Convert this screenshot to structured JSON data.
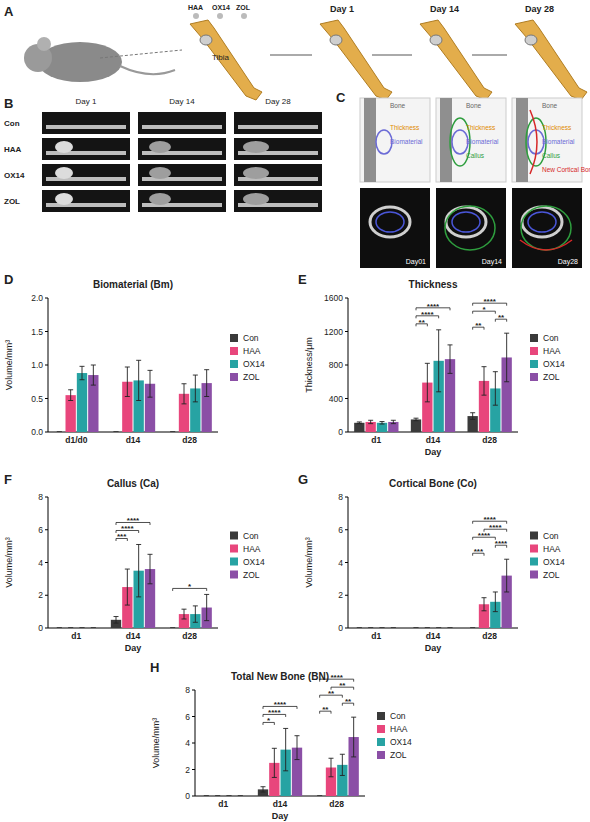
{
  "figure": {
    "panel_labels": [
      "A",
      "B",
      "C"
    ],
    "a": {
      "materials": [
        "HAA",
        "OX14",
        "ZOL"
      ],
      "tibia_label": "Tibia",
      "days": [
        "Day 1",
        "Day 14",
        "Day 28"
      ]
    },
    "b": {
      "days": [
        "Day 1",
        "Day 14",
        "Day 28"
      ],
      "groups": [
        "Con",
        "HAA",
        "OX14",
        "ZOL"
      ]
    },
    "c": {
      "schematic_labels": [
        "Bone",
        "Thickness",
        "Biomaterial",
        "Callus",
        "New Cortical Bone"
      ],
      "days": [
        "Day01",
        "Day14",
        "Day28"
      ]
    }
  },
  "chart_data": [
    {
      "type": "bar",
      "panel_label": "D",
      "title": "Biomaterial (Bm)",
      "ylabel": "Volume/mm³",
      "categories": [
        "d1/d0",
        "d14",
        "d28"
      ],
      "series": [
        {
          "name": "Con",
          "color": "#3a3a3a",
          "values": [
            0,
            0,
            0
          ],
          "errors": [
            0,
            0,
            0
          ]
        },
        {
          "name": "HAA",
          "color": "#e8467c",
          "values": [
            0.55,
            0.75,
            0.57
          ],
          "errors": [
            0.08,
            0.22,
            0.15
          ]
        },
        {
          "name": "OX14",
          "color": "#27a3a3",
          "values": [
            0.88,
            0.77,
            0.65
          ],
          "errors": [
            0.1,
            0.3,
            0.2
          ]
        },
        {
          "name": "ZOL",
          "color": "#8b4fa6",
          "values": [
            0.85,
            0.72,
            0.73
          ],
          "errors": [
            0.15,
            0.2,
            0.2
          ]
        }
      ],
      "ylim": [
        0,
        2
      ],
      "yticks": [
        {
          "value": 0,
          "label": "0.0"
        },
        0.5,
        {
          "value": 1,
          "label": "1.0"
        },
        1.5,
        {
          "value": 2,
          "label": "2.0"
        }
      ],
      "legend": "right"
    },
    {
      "type": "bar",
      "panel_label": "E",
      "title": "Thickness",
      "ylabel": "Thickness/μm",
      "xlabel": "Day",
      "categories": [
        "d1",
        "d14",
        "d28"
      ],
      "series": [
        {
          "name": "Con",
          "color": "#3a3a3a",
          "values": [
            110,
            150,
            190
          ],
          "errors": [
            10,
            15,
            40
          ]
        },
        {
          "name": "HAA",
          "color": "#e8467c",
          "values": [
            120,
            590,
            610
          ],
          "errors": [
            20,
            230,
            170
          ]
        },
        {
          "name": "OX14",
          "color": "#27a3a3",
          "values": [
            110,
            850,
            520
          ],
          "errors": [
            15,
            370,
            200
          ]
        },
        {
          "name": "ZOL",
          "color": "#8b4fa6",
          "values": [
            120,
            870,
            890
          ],
          "errors": [
            20,
            170,
            290
          ]
        }
      ],
      "ylim": [
        0,
        1600
      ],
      "yticks": [
        0,
        400,
        800,
        1200,
        1600
      ],
      "legend": "right",
      "significance": [
        {
          "category": "d14",
          "from": "Con",
          "to": "HAA",
          "label": "**"
        },
        {
          "category": "d14",
          "from": "Con",
          "to": "OX14",
          "label": "****"
        },
        {
          "category": "d14",
          "from": "Con",
          "to": "ZOL",
          "label": "****"
        },
        {
          "category": "d28",
          "from": "Con",
          "to": "HAA",
          "label": "**"
        },
        {
          "category": "d28",
          "from": "OX14",
          "to": "ZOL",
          "label": "**"
        },
        {
          "category": "d28",
          "from": "Con",
          "to": "OX14",
          "label": "*"
        },
        {
          "category": "d28",
          "from": "Con",
          "to": "ZOL",
          "label": "****"
        }
      ]
    },
    {
      "type": "bar",
      "panel_label": "F",
      "title": "Callus (Ca)",
      "ylabel": "Volume/mm³",
      "xlabel": "Day",
      "categories": [
        "d1",
        "d14",
        "d28"
      ],
      "series": [
        {
          "name": "Con",
          "color": "#3a3a3a",
          "values": [
            0,
            0.5,
            0
          ],
          "errors": [
            0,
            0.2,
            0
          ]
        },
        {
          "name": "HAA",
          "color": "#e8467c",
          "values": [
            0,
            2.5,
            0.85
          ],
          "errors": [
            0,
            1.1,
            0.3
          ]
        },
        {
          "name": "OX14",
          "color": "#27a3a3",
          "values": [
            0,
            3.5,
            0.85
          ],
          "errors": [
            0,
            1.6,
            0.5
          ]
        },
        {
          "name": "ZOL",
          "color": "#8b4fa6",
          "values": [
            0,
            3.6,
            1.25
          ],
          "errors": [
            0,
            0.9,
            0.8
          ]
        }
      ],
      "ylim": [
        0,
        8
      ],
      "yticks": [
        0,
        2,
        4,
        6,
        8
      ],
      "legend": "right",
      "significance": [
        {
          "category": "d14",
          "from": "Con",
          "to": "HAA",
          "label": "***"
        },
        {
          "category": "d14",
          "from": "Con",
          "to": "OX14",
          "label": "****"
        },
        {
          "category": "d14",
          "from": "Con",
          "to": "ZOL",
          "label": "****"
        },
        {
          "category": "d28",
          "from": "Con",
          "to": "ZOL",
          "label": "*"
        }
      ]
    },
    {
      "type": "bar",
      "panel_label": "G",
      "title": "Cortical Bone (Co)",
      "ylabel": "Volume/mm³",
      "xlabel": "Day",
      "categories": [
        "d1",
        "d14",
        "d28"
      ],
      "series": [
        {
          "name": "Con",
          "color": "#3a3a3a",
          "values": [
            0,
            0,
            0
          ],
          "errors": [
            0,
            0,
            0
          ]
        },
        {
          "name": "HAA",
          "color": "#e8467c",
          "values": [
            0,
            0,
            1.45
          ],
          "errors": [
            0,
            0,
            0.4
          ]
        },
        {
          "name": "OX14",
          "color": "#27a3a3",
          "values": [
            0,
            0,
            1.6
          ],
          "errors": [
            0,
            0,
            0.6
          ]
        },
        {
          "name": "ZOL",
          "color": "#8b4fa6",
          "values": [
            0,
            0,
            3.2
          ],
          "errors": [
            0,
            0,
            1.0
          ]
        }
      ],
      "ylim": [
        0,
        8
      ],
      "yticks": [
        0,
        2,
        4,
        6,
        8
      ],
      "legend": "right",
      "significance": [
        {
          "category": "d28",
          "from": "Con",
          "to": "HAA",
          "label": "***"
        },
        {
          "category": "d28",
          "from": "OX14",
          "to": "ZOL",
          "label": "****"
        },
        {
          "category": "d28",
          "from": "Con",
          "to": "OX14",
          "label": "****"
        },
        {
          "category": "d28",
          "from": "HAA",
          "to": "ZOL",
          "label": "****"
        },
        {
          "category": "d28",
          "from": "Con",
          "to": "ZOL",
          "label": "****"
        }
      ]
    },
    {
      "type": "bar",
      "panel_label": "H",
      "title": "Total New Bone (BN)",
      "ylabel": "Volume/mm³",
      "xlabel": "Day",
      "categories": [
        "d1",
        "d14",
        "d28"
      ],
      "series": [
        {
          "name": "Con",
          "color": "#3a3a3a",
          "values": [
            0,
            0.5,
            0
          ],
          "errors": [
            0,
            0.2,
            0
          ]
        },
        {
          "name": "HAA",
          "color": "#e8467c",
          "values": [
            0,
            2.5,
            2.15
          ],
          "errors": [
            0,
            1.1,
            0.7
          ]
        },
        {
          "name": "OX14",
          "color": "#27a3a3",
          "values": [
            0,
            3.5,
            2.35
          ],
          "errors": [
            0,
            1.6,
            0.8
          ]
        },
        {
          "name": "ZOL",
          "color": "#8b4fa6",
          "values": [
            0,
            3.65,
            4.45
          ],
          "errors": [
            0,
            0.9,
            1.5
          ]
        }
      ],
      "ylim": [
        0,
        8
      ],
      "yticks": [
        0,
        2,
        4,
        6,
        8
      ],
      "legend": "right",
      "significance": [
        {
          "category": "d14",
          "from": "Con",
          "to": "HAA",
          "label": "*"
        },
        {
          "category": "d14",
          "from": "Con",
          "to": "OX14",
          "label": "****"
        },
        {
          "category": "d14",
          "from": "Con",
          "to": "ZOL",
          "label": "****"
        },
        {
          "category": "d28",
          "from": "Con",
          "to": "HAA",
          "label": "**"
        },
        {
          "category": "d28",
          "from": "OX14",
          "to": "ZOL",
          "label": "**"
        },
        {
          "category": "d28",
          "from": "Con",
          "to": "OX14",
          "label": "**"
        },
        {
          "category": "d28",
          "from": "HAA",
          "to": "ZOL",
          "label": "**"
        },
        {
          "category": "d28",
          "from": "Con",
          "to": "ZOL",
          "label": "****"
        }
      ]
    }
  ]
}
